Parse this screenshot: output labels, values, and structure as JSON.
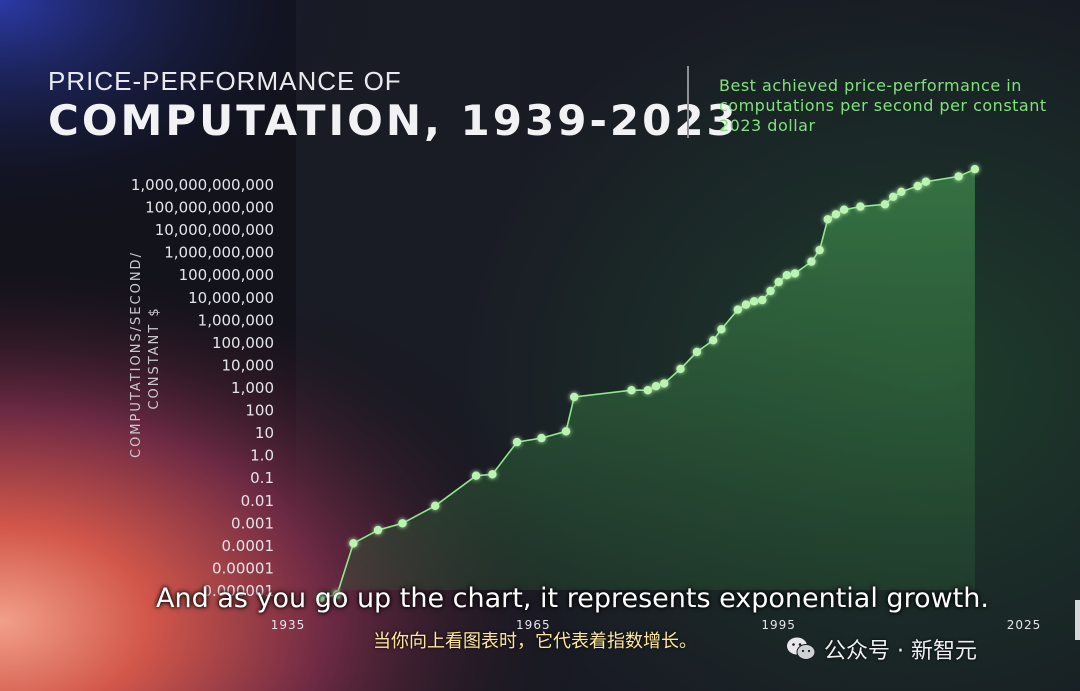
{
  "title_line1": "PRICE-PERFORMANCE OF",
  "title_line2": "COMPUTATION, 1939-2023",
  "subtitle": "Best achieved price-performance in computations per second per constant 2023 dollar",
  "y_axis_label_line1": "COMPUTATIONS/SECOND/",
  "y_axis_label_line2": "CONSTANT $",
  "colors": {
    "accent": "#7fe37a",
    "point": "#b9f5b0",
    "fill": "#2f6b3a"
  },
  "chart_data": {
    "type": "area",
    "title": "PRICE-PERFORMANCE OF COMPUTATION, 1939-2023",
    "subtitle": "Best achieved price-performance in computations per second per constant 2023 dollar",
    "ylabel": "COMPUTATIONS/SECOND/ CONSTANT $",
    "xlabel": "",
    "y_scale": "log",
    "y_tick_labels": [
      "0.000001",
      "0.00001",
      "0.0001",
      "0.001",
      "0.01",
      "0.1",
      "1.0",
      "10",
      "100",
      "1,000",
      "10,000",
      "100,000",
      "1,000,000",
      "10,000,000",
      "100,000,000",
      "1,000,000,000",
      "10,000,000,000",
      "100,000,000,000",
      "1,000,000,000,000"
    ],
    "y_tick_values": [
      1e-06,
      1e-05,
      0.0001,
      0.001,
      0.01,
      0.1,
      1,
      10,
      100,
      1000,
      10000.0,
      100000.0,
      1000000.0,
      10000000.0,
      100000000.0,
      1000000000.0,
      10000000000.0,
      100000000000.0,
      1000000000000.0
    ],
    "x_ticks": [
      1935,
      1965,
      1995,
      2025
    ],
    "x_tick_labels": [
      "1935",
      "1965",
      "1995",
      "2025"
    ],
    "xlim": [
      1935,
      2025
    ],
    "ylim": [
      1e-06,
      1000000000000.0
    ],
    "grid": false,
    "x": [
      1939,
      1941,
      1943,
      1946,
      1949,
      1953,
      1958,
      1960,
      1963,
      1966,
      1969,
      1970,
      1977,
      1979,
      1980,
      1981,
      1983,
      1985,
      1987,
      1988,
      1990,
      1991,
      1992,
      1993,
      1994,
      1995,
      1996,
      1997,
      1999,
      2000,
      2001,
      2002,
      2003,
      2005,
      2008,
      2009,
      2010,
      2012,
      2013,
      2017,
      2019
    ],
    "y": [
      5e-07,
      7e-07,
      0.00013,
      0.0005,
      0.001,
      0.006,
      0.13,
      0.15,
      4,
      6,
      12.0,
      400.0,
      800.0,
      800.0,
      1200.0,
      1600.0,
      7000.0,
      40000.0,
      130000.0,
      400000.0,
      3000000.0,
      5000000.0,
      7000000.0,
      8000000.0,
      20000000.0,
      50000000.0,
      100000000.0,
      120000000.0,
      400000000.0,
      1300000000.0,
      30000000000.0,
      50000000000.0,
      80000000000.0,
      110000000000.0,
      140000000000.0,
      300000000000.0,
      500000000000.0,
      900000000000.0,
      1400000000000.0,
      2400000000000.0,
      5000000000000.0
    ]
  },
  "caption_en": "And as you go up the chart, it represents exponential growth.",
  "caption_zh": "当你向上看图表时，它代表着指数增长。",
  "watermark": {
    "icon": "wechat-icon",
    "text": "公众号 · 新智元"
  }
}
